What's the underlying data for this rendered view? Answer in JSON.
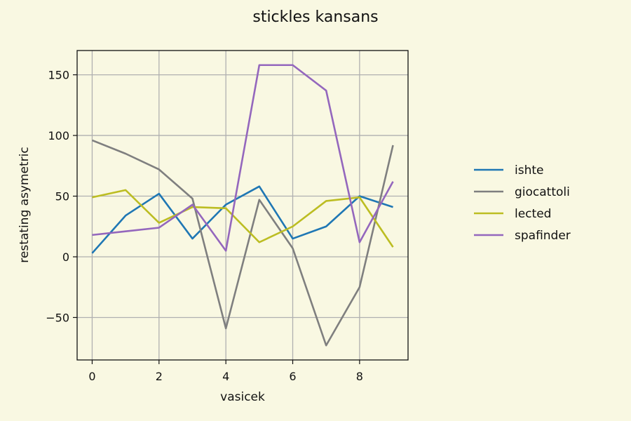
{
  "chart_data": {
    "type": "line",
    "title": "stickles kansans",
    "xlabel": "vasicek",
    "ylabel": "restating asymetric",
    "x": [
      0,
      1,
      2,
      3,
      4,
      5,
      6,
      7,
      8,
      9
    ],
    "xlim": [
      -0.45,
      9.45
    ],
    "ylim": [
      -85,
      170
    ],
    "xticks": [
      0,
      2,
      4,
      6,
      8
    ],
    "xtick_labels": [
      "0",
      "2",
      "4",
      "6",
      "8"
    ],
    "yticks": [
      -50,
      0,
      50,
      100,
      150
    ],
    "ytick_labels": [
      "−50",
      "0",
      "50",
      "100",
      "150"
    ],
    "grid": true,
    "legend_position": "right, outside plot",
    "series": [
      {
        "name": "ishte",
        "color": "#1f77b4",
        "values": [
          3,
          34,
          52,
          15,
          43,
          58,
          15,
          25,
          50,
          41
        ]
      },
      {
        "name": "giocattoli",
        "color": "#7f7f7f",
        "values": [
          96,
          85,
          72,
          48,
          -59,
          47,
          7,
          -73,
          -25,
          92
        ]
      },
      {
        "name": "lected",
        "color": "#bcbd22",
        "values": [
          49,
          55,
          28,
          41,
          40,
          12,
          25,
          46,
          49,
          8
        ]
      },
      {
        "name": "spafinder",
        "color": "#9467bd",
        "values": [
          18,
          21,
          24,
          43,
          5,
          158,
          158,
          137,
          12,
          62
        ]
      }
    ]
  }
}
